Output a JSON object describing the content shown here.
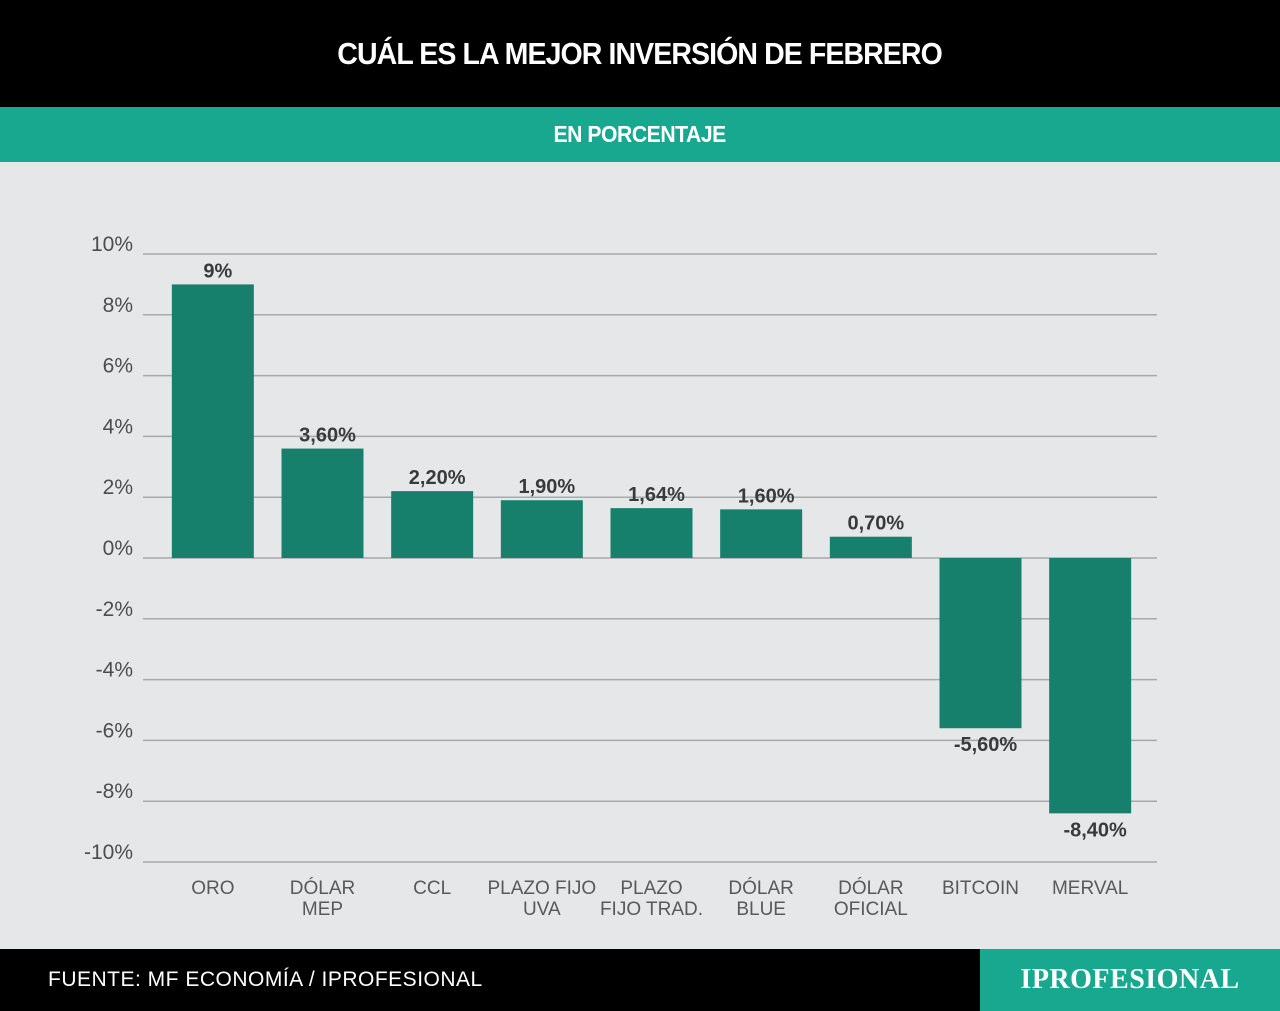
{
  "header": {
    "title": "CUÁL ES LA MEJOR INVERSIÓN DE FEBRERO"
  },
  "subheader": {
    "subtitle": "EN PORCENTAJE"
  },
  "footer": {
    "source": "FUENTE: MF ECONOMÍA / IPROFESIONAL",
    "brand": "IPROFESIONAL"
  },
  "colors": {
    "bar": "#17806d",
    "accent": "#17a88f",
    "grid": "#a7a9ac",
    "background": "#e6e7e8"
  },
  "chart_data": {
    "type": "bar",
    "title": "CUÁL ES LA MEJOR INVERSIÓN DE FEBRERO",
    "subtitle": "EN PORCENTAJE",
    "xlabel": "",
    "ylabel": "",
    "ylim": [
      -10,
      10
    ],
    "yticks": [
      10,
      8,
      6,
      4,
      2,
      0,
      -2,
      -4,
      -6,
      -8,
      -10
    ],
    "ytick_labels": [
      "10%",
      "8%",
      "6%",
      "4%",
      "2%",
      "0%",
      "-2%",
      "-4%",
      "-6%",
      "-8%",
      "-10%"
    ],
    "grid": true,
    "categories": [
      [
        "ORO"
      ],
      [
        "DÓLAR",
        "MEP"
      ],
      [
        "CCL"
      ],
      [
        "PLAZO  FIJO",
        "UVA"
      ],
      [
        "PLAZO",
        "FIJO TRAD."
      ],
      [
        "DÓLAR",
        "BLUE"
      ],
      [
        "DÓLAR",
        "OFICIAL"
      ],
      [
        "BITCOIN"
      ],
      [
        "MERVAL"
      ]
    ],
    "values": [
      9,
      3.6,
      2.2,
      1.9,
      1.64,
      1.6,
      0.7,
      -5.6,
      -8.4
    ],
    "data_labels": [
      "9%",
      "3,60%",
      "2,20%",
      "1,90%",
      "1,64%",
      "1,60%",
      "0,70%",
      "-5,60%",
      "-8,40%"
    ]
  }
}
